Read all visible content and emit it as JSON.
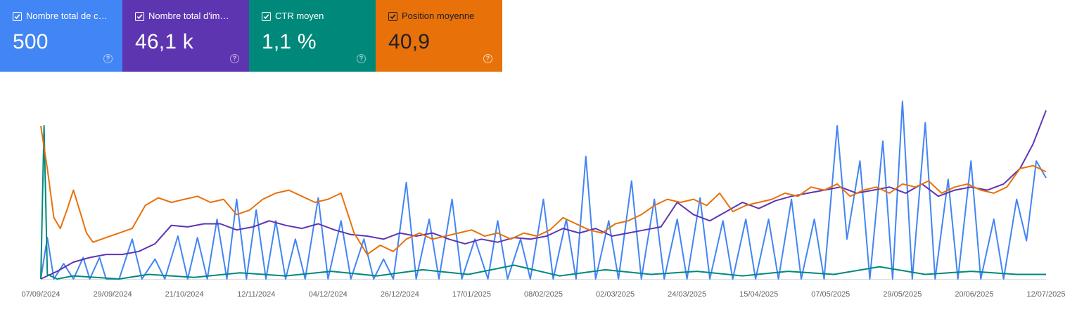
{
  "metrics": [
    {
      "label": "Nombre total de c…",
      "value": "500",
      "color": "#4285f4",
      "text_color": "#ffffff",
      "checked": true
    },
    {
      "label": "Nombre total d'im…",
      "value": "46,1 k",
      "color": "#5e35b1",
      "text_color": "#ffffff",
      "checked": true
    },
    {
      "label": "CTR moyen",
      "value": "1,1 %",
      "color": "#00897b",
      "text_color": "#ffffff",
      "checked": true
    },
    {
      "label": "Position moyenne",
      "value": "40,9",
      "color": "#e8710a",
      "text_color": "#202124",
      "checked": true
    }
  ],
  "help_glyph": "?",
  "chart_data": {
    "type": "line",
    "x_tick_labels": [
      "07/09/2024",
      "29/09/2024",
      "21/10/2024",
      "12/11/2024",
      "04/12/2024",
      "26/12/2024",
      "17/01/2025",
      "08/02/2025",
      "02/03/2025",
      "24/03/2025",
      "15/04/2025",
      "07/05/2025",
      "29/05/2025",
      "20/06/2025",
      "12/07/2025"
    ],
    "x_start": "2024-09-07",
    "x_end": "2025-07-12",
    "axes_values_visible": false,
    "grid": false,
    "series": [
      {
        "name": "Nombre total de c…",
        "color": "#4285f4",
        "points": [
          [
            "2024-09-07",
            0
          ],
          [
            "2024-09-09",
            0.27
          ],
          [
            "2024-09-11",
            0
          ],
          [
            "2024-09-14",
            0.1
          ],
          [
            "2024-09-17",
            0
          ],
          [
            "2024-09-20",
            0.14
          ],
          [
            "2024-09-22",
            0
          ],
          [
            "2024-09-25",
            0.14
          ],
          [
            "2024-09-27",
            0
          ],
          [
            "2024-10-01",
            0
          ],
          [
            "2024-10-05",
            0.26
          ],
          [
            "2024-10-08",
            0
          ],
          [
            "2024-10-12",
            0.13
          ],
          [
            "2024-10-15",
            0
          ],
          [
            "2024-10-19",
            0.28
          ],
          [
            "2024-10-22",
            0
          ],
          [
            "2024-10-25",
            0.27
          ],
          [
            "2024-10-28",
            0
          ],
          [
            "2024-10-31",
            0.39
          ],
          [
            "2024-11-03",
            0
          ],
          [
            "2024-11-06",
            0.52
          ],
          [
            "2024-11-09",
            0
          ],
          [
            "2024-11-12",
            0.45
          ],
          [
            "2024-11-15",
            0
          ],
          [
            "2024-11-18",
            0.38
          ],
          [
            "2024-11-21",
            0
          ],
          [
            "2024-11-24",
            0.26
          ],
          [
            "2024-11-27",
            0
          ],
          [
            "2024-12-01",
            0.53
          ],
          [
            "2024-12-04",
            0
          ],
          [
            "2024-12-08",
            0.38
          ],
          [
            "2024-12-11",
            0
          ],
          [
            "2024-12-15",
            0.26
          ],
          [
            "2024-12-18",
            0
          ],
          [
            "2024-12-21",
            0.13
          ],
          [
            "2024-12-24",
            0
          ],
          [
            "2024-12-28",
            0.63
          ],
          [
            "2024-12-31",
            0
          ],
          [
            "2025-01-04",
            0.39
          ],
          [
            "2025-01-07",
            0
          ],
          [
            "2025-01-11",
            0.52
          ],
          [
            "2025-01-14",
            0
          ],
          [
            "2025-01-18",
            0.26
          ],
          [
            "2025-01-22",
            0
          ],
          [
            "2025-01-25",
            0.38
          ],
          [
            "2025-01-28",
            0
          ],
          [
            "2025-02-01",
            0.26
          ],
          [
            "2025-02-04",
            0
          ],
          [
            "2025-02-08",
            0.52
          ],
          [
            "2025-02-11",
            0
          ],
          [
            "2025-02-15",
            0.39
          ],
          [
            "2025-02-18",
            0
          ],
          [
            "2025-02-21",
            0.8
          ],
          [
            "2025-02-24",
            0
          ],
          [
            "2025-02-28",
            0.38
          ],
          [
            "2025-03-03",
            0
          ],
          [
            "2025-03-07",
            0.64
          ],
          [
            "2025-03-10",
            0
          ],
          [
            "2025-03-14",
            0.52
          ],
          [
            "2025-03-17",
            0
          ],
          [
            "2025-03-21",
            0.39
          ],
          [
            "2025-03-24",
            0
          ],
          [
            "2025-03-28",
            0.53
          ],
          [
            "2025-03-31",
            0
          ],
          [
            "2025-04-04",
            0.38
          ],
          [
            "2025-04-07",
            0
          ],
          [
            "2025-04-11",
            0.39
          ],
          [
            "2025-04-14",
            0
          ],
          [
            "2025-04-18",
            0.39
          ],
          [
            "2025-04-21",
            0
          ],
          [
            "2025-04-25",
            0.52
          ],
          [
            "2025-04-28",
            0
          ],
          [
            "2025-05-02",
            0.39
          ],
          [
            "2025-05-05",
            0
          ],
          [
            "2025-05-09",
            1.0
          ],
          [
            "2025-05-12",
            0.26
          ],
          [
            "2025-05-16",
            0.77
          ],
          [
            "2025-05-19",
            0
          ],
          [
            "2025-05-23",
            0.9
          ],
          [
            "2025-05-26",
            0
          ],
          [
            "2025-05-29",
            1.16
          ],
          [
            "2025-06-01",
            0
          ],
          [
            "2025-06-05",
            1.02
          ],
          [
            "2025-06-08",
            0
          ],
          [
            "2025-06-12",
            0.65
          ],
          [
            "2025-06-15",
            0
          ],
          [
            "2025-06-19",
            0.77
          ],
          [
            "2025-06-22",
            0
          ],
          [
            "2025-06-26",
            0.39
          ],
          [
            "2025-06-29",
            0
          ],
          [
            "2025-07-03",
            0.52
          ],
          [
            "2025-07-06",
            0.25
          ],
          [
            "2025-07-09",
            0.77
          ],
          [
            "2025-07-12",
            0.66
          ]
        ]
      },
      {
        "name": "Nombre total d'im…",
        "color": "#5e35b1",
        "points": [
          [
            "2024-09-07",
            0
          ],
          [
            "2024-09-12",
            0.05
          ],
          [
            "2024-09-17",
            0.11
          ],
          [
            "2024-09-22",
            0.14
          ],
          [
            "2024-09-27",
            0.16
          ],
          [
            "2024-10-02",
            0.16
          ],
          [
            "2024-10-07",
            0.18
          ],
          [
            "2024-10-12",
            0.23
          ],
          [
            "2024-10-17",
            0.35
          ],
          [
            "2024-10-22",
            0.34
          ],
          [
            "2024-10-27",
            0.36
          ],
          [
            "2024-11-01",
            0.36
          ],
          [
            "2024-11-06",
            0.32
          ],
          [
            "2024-11-11",
            0.34
          ],
          [
            "2024-11-16",
            0.38
          ],
          [
            "2024-11-21",
            0.35
          ],
          [
            "2024-11-26",
            0.33
          ],
          [
            "2024-12-01",
            0.36
          ],
          [
            "2024-12-06",
            0.32
          ],
          [
            "2024-12-11",
            0.29
          ],
          [
            "2024-12-16",
            0.28
          ],
          [
            "2024-12-21",
            0.26
          ],
          [
            "2024-12-26",
            0.3
          ],
          [
            "2024-12-31",
            0.28
          ],
          [
            "2025-01-05",
            0.3
          ],
          [
            "2025-01-10",
            0.26
          ],
          [
            "2025-01-15",
            0.23
          ],
          [
            "2025-01-20",
            0.26
          ],
          [
            "2025-01-25",
            0.24
          ],
          [
            "2025-01-30",
            0.27
          ],
          [
            "2025-02-04",
            0.26
          ],
          [
            "2025-02-09",
            0.28
          ],
          [
            "2025-02-14",
            0.33
          ],
          [
            "2025-02-19",
            0.3
          ],
          [
            "2025-02-24",
            0.33
          ],
          [
            "2025-03-01",
            0.28
          ],
          [
            "2025-03-06",
            0.3
          ],
          [
            "2025-03-11",
            0.32
          ],
          [
            "2025-03-16",
            0.34
          ],
          [
            "2025-03-21",
            0.5
          ],
          [
            "2025-03-26",
            0.42
          ],
          [
            "2025-03-31",
            0.38
          ],
          [
            "2025-04-05",
            0.44
          ],
          [
            "2025-04-10",
            0.5
          ],
          [
            "2025-04-15",
            0.46
          ],
          [
            "2025-04-20",
            0.51
          ],
          [
            "2025-04-25",
            0.54
          ],
          [
            "2025-04-30",
            0.56
          ],
          [
            "2025-05-05",
            0.58
          ],
          [
            "2025-05-10",
            0.6
          ],
          [
            "2025-05-15",
            0.56
          ],
          [
            "2025-05-20",
            0.58
          ],
          [
            "2025-05-25",
            0.6
          ],
          [
            "2025-05-30",
            0.56
          ],
          [
            "2025-06-04",
            0.62
          ],
          [
            "2025-06-09",
            0.54
          ],
          [
            "2025-06-14",
            0.58
          ],
          [
            "2025-06-19",
            0.6
          ],
          [
            "2025-06-24",
            0.58
          ],
          [
            "2025-06-29",
            0.62
          ],
          [
            "2025-07-04",
            0.72
          ],
          [
            "2025-07-08",
            0.88
          ],
          [
            "2025-07-12",
            1.1
          ]
        ]
      },
      {
        "name": "CTR moyen",
        "color": "#00897b",
        "points": [
          [
            "2024-09-07",
            0
          ],
          [
            "2024-09-08",
            1.0
          ],
          [
            "2024-09-09",
            0.03
          ],
          [
            "2024-09-12",
            0
          ],
          [
            "2024-09-17",
            0.02
          ],
          [
            "2024-10-01",
            0
          ],
          [
            "2024-10-10",
            0.03
          ],
          [
            "2024-10-24",
            0.01
          ],
          [
            "2024-11-07",
            0.04
          ],
          [
            "2024-11-21",
            0.02
          ],
          [
            "2024-12-05",
            0.05
          ],
          [
            "2024-12-19",
            0.02
          ],
          [
            "2025-01-02",
            0.06
          ],
          [
            "2025-01-16",
            0.03
          ],
          [
            "2025-01-30",
            0.09
          ],
          [
            "2025-02-13",
            0.02
          ],
          [
            "2025-02-27",
            0.06
          ],
          [
            "2025-03-13",
            0.03
          ],
          [
            "2025-03-27",
            0.05
          ],
          [
            "2025-04-10",
            0.02
          ],
          [
            "2025-04-24",
            0.05
          ],
          [
            "2025-05-08",
            0.03
          ],
          [
            "2025-05-22",
            0.08
          ],
          [
            "2025-06-05",
            0.03
          ],
          [
            "2025-06-19",
            0.05
          ],
          [
            "2025-07-03",
            0.03
          ],
          [
            "2025-07-12",
            0.03
          ]
        ]
      },
      {
        "name": "Position moyenne",
        "color": "#e8710a",
        "points": [
          [
            "2024-09-07",
            1.0
          ],
          [
            "2024-09-09",
            0.72
          ],
          [
            "2024-09-11",
            0.4
          ],
          [
            "2024-09-13",
            0.33
          ],
          [
            "2024-09-15",
            0.45
          ],
          [
            "2024-09-17",
            0.58
          ],
          [
            "2024-09-19",
            0.44
          ],
          [
            "2024-09-21",
            0.3
          ],
          [
            "2024-09-23",
            0.24
          ],
          [
            "2024-09-27",
            0.27
          ],
          [
            "2024-10-01",
            0.3
          ],
          [
            "2024-10-05",
            0.33
          ],
          [
            "2024-10-09",
            0.48
          ],
          [
            "2024-10-13",
            0.53
          ],
          [
            "2024-10-17",
            0.5
          ],
          [
            "2024-10-21",
            0.52
          ],
          [
            "2024-10-25",
            0.54
          ],
          [
            "2024-10-29",
            0.5
          ],
          [
            "2024-11-02",
            0.52
          ],
          [
            "2024-11-06",
            0.42
          ],
          [
            "2024-11-10",
            0.45
          ],
          [
            "2024-11-14",
            0.52
          ],
          [
            "2024-11-18",
            0.56
          ],
          [
            "2024-11-22",
            0.58
          ],
          [
            "2024-11-26",
            0.54
          ],
          [
            "2024-11-30",
            0.5
          ],
          [
            "2024-12-04",
            0.52
          ],
          [
            "2024-12-08",
            0.56
          ],
          [
            "2024-12-12",
            0.3
          ],
          [
            "2024-12-16",
            0.16
          ],
          [
            "2024-12-20",
            0.22
          ],
          [
            "2024-12-24",
            0.18
          ],
          [
            "2024-12-28",
            0.26
          ],
          [
            "2025-01-01",
            0.3
          ],
          [
            "2025-01-05",
            0.26
          ],
          [
            "2025-01-09",
            0.28
          ],
          [
            "2025-01-13",
            0.3
          ],
          [
            "2025-01-17",
            0.32
          ],
          [
            "2025-01-21",
            0.28
          ],
          [
            "2025-01-25",
            0.3
          ],
          [
            "2025-01-29",
            0.26
          ],
          [
            "2025-02-02",
            0.3
          ],
          [
            "2025-02-06",
            0.28
          ],
          [
            "2025-02-10",
            0.32
          ],
          [
            "2025-02-14",
            0.4
          ],
          [
            "2025-02-18",
            0.36
          ],
          [
            "2025-02-22",
            0.32
          ],
          [
            "2025-02-26",
            0.3
          ],
          [
            "2025-03-02",
            0.36
          ],
          [
            "2025-03-06",
            0.38
          ],
          [
            "2025-03-10",
            0.42
          ],
          [
            "2025-03-14",
            0.48
          ],
          [
            "2025-03-18",
            0.52
          ],
          [
            "2025-03-22",
            0.5
          ],
          [
            "2025-03-26",
            0.52
          ],
          [
            "2025-03-30",
            0.48
          ],
          [
            "2025-04-03",
            0.56
          ],
          [
            "2025-04-07",
            0.44
          ],
          [
            "2025-04-11",
            0.48
          ],
          [
            "2025-04-15",
            0.5
          ],
          [
            "2025-04-19",
            0.52
          ],
          [
            "2025-04-23",
            0.56
          ],
          [
            "2025-04-27",
            0.54
          ],
          [
            "2025-05-01",
            0.6
          ],
          [
            "2025-05-05",
            0.58
          ],
          [
            "2025-05-09",
            0.62
          ],
          [
            "2025-05-13",
            0.54
          ],
          [
            "2025-05-17",
            0.58
          ],
          [
            "2025-05-21",
            0.6
          ],
          [
            "2025-05-25",
            0.56
          ],
          [
            "2025-05-29",
            0.62
          ],
          [
            "2025-06-02",
            0.6
          ],
          [
            "2025-06-06",
            0.64
          ],
          [
            "2025-06-10",
            0.56
          ],
          [
            "2025-06-14",
            0.6
          ],
          [
            "2025-06-18",
            0.62
          ],
          [
            "2025-06-22",
            0.58
          ],
          [
            "2025-06-26",
            0.56
          ],
          [
            "2025-06-30",
            0.6
          ],
          [
            "2025-07-04",
            0.72
          ],
          [
            "2025-07-08",
            0.74
          ],
          [
            "2025-07-12",
            0.7
          ]
        ]
      }
    ]
  }
}
